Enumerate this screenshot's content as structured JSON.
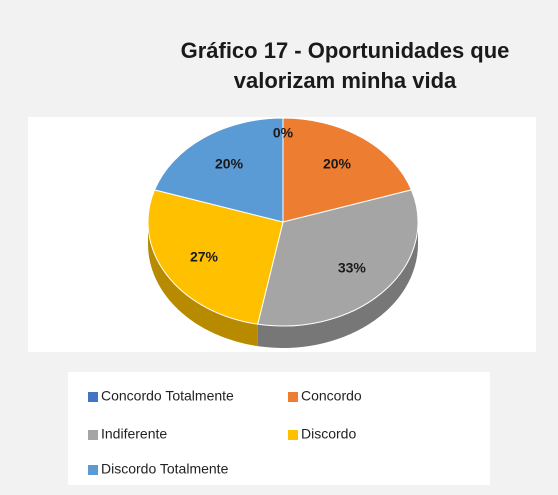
{
  "chart_data": {
    "type": "pie3d",
    "title": "Gráfico 17 - Oportunidades que valorizam minha vida",
    "categories": [
      "Concordo Totalmente",
      "Concordo",
      "Indiferente",
      "Discordo",
      "Discordo Totalmente"
    ],
    "values": [
      0,
      20,
      33,
      27,
      20
    ],
    "value_labels": [
      "0%",
      "20%",
      "33%",
      "27%",
      "20%"
    ],
    "colors": [
      "#4472c4",
      "#ed7d31",
      "#a5a5a5",
      "#ffc000",
      "#5b9bd5"
    ],
    "legend": "bottom"
  }
}
